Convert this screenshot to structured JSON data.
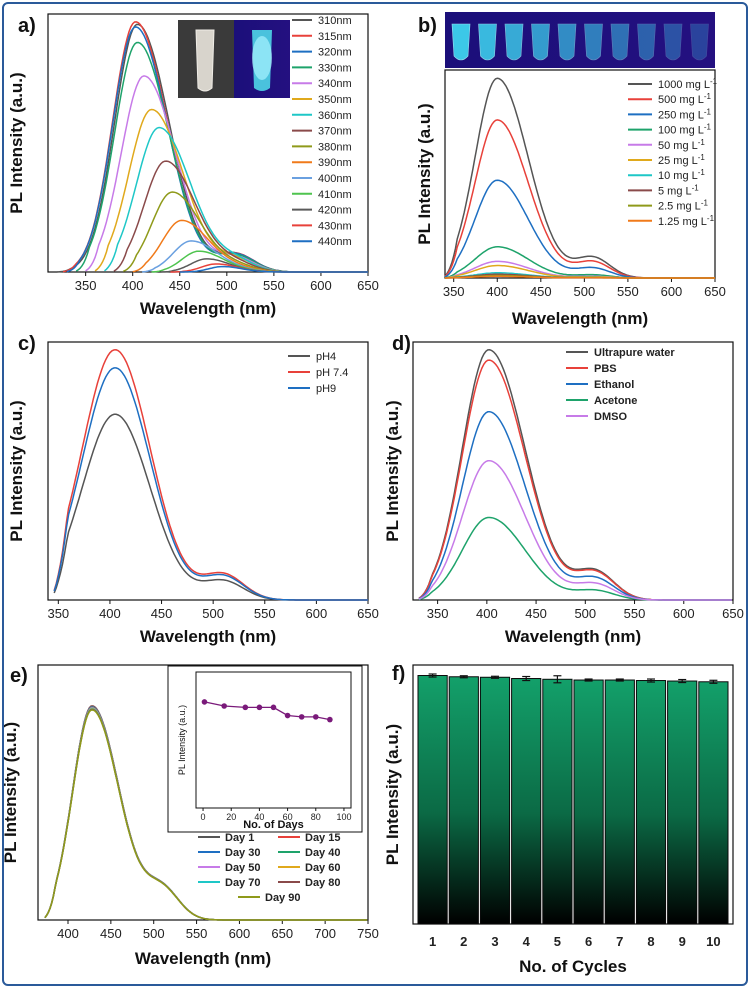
{
  "chart_data": [
    {
      "id": "a",
      "panel_label": "a)",
      "type": "line",
      "xlabel": "Wavelength (nm)",
      "ylabel": "PL Intensity (a.u.)",
      "xlim": [
        310,
        650
      ],
      "xticks": [
        350,
        400,
        450,
        500,
        550,
        600,
        650
      ],
      "ylim": [
        0,
        1.0
      ],
      "inset_image": "cuvette-photo-daylight-and-uv",
      "legend_title": "",
      "series": [
        {
          "name": "310nm",
          "color": "#555555",
          "start": 320,
          "peak": 405,
          "amp": 0.96,
          "w": 38
        },
        {
          "name": "315nm",
          "color": "#e8413a",
          "start": 325,
          "peak": 403,
          "amp": 0.97,
          "w": 38
        },
        {
          "name": "320nm",
          "color": "#1e6fc2",
          "start": 330,
          "peak": 403,
          "amp": 0.95,
          "w": 38
        },
        {
          "name": "330nm",
          "color": "#1ea36b",
          "start": 340,
          "peak": 405,
          "amp": 0.89,
          "w": 38
        },
        {
          "name": "340nm",
          "color": "#c77be8",
          "start": 350,
          "peak": 412,
          "amp": 0.76,
          "w": 38
        },
        {
          "name": "350nm",
          "color": "#e0a91c",
          "start": 360,
          "peak": 420,
          "amp": 0.63,
          "w": 38
        },
        {
          "name": "360nm",
          "color": "#1ec7c7",
          "start": 370,
          "peak": 428,
          "amp": 0.56,
          "w": 38
        },
        {
          "name": "370nm",
          "color": "#8a4a4a",
          "start": 380,
          "peak": 435,
          "amp": 0.43,
          "w": 36
        },
        {
          "name": "380nm",
          "color": "#8f9a1a",
          "start": 390,
          "peak": 442,
          "amp": 0.31,
          "w": 34
        },
        {
          "name": "390nm",
          "color": "#f07a1a",
          "start": 400,
          "peak": 452,
          "amp": 0.2,
          "w": 32
        },
        {
          "name": "400nm",
          "color": "#6aa0e0",
          "start": 410,
          "peak": 462,
          "amp": 0.12,
          "w": 30
        },
        {
          "name": "410nm",
          "color": "#4ec44e",
          "start": 420,
          "peak": 470,
          "amp": 0.08,
          "w": 28
        },
        {
          "name": "420nm",
          "color": "#5a5a5a",
          "start": 430,
          "peak": 478,
          "amp": 0.05,
          "w": 26
        },
        {
          "name": "430nm",
          "color": "#e8413a",
          "start": 440,
          "peak": 488,
          "amp": 0.03,
          "w": 24
        },
        {
          "name": "440nm",
          "color": "#1e6fc2",
          "start": 450,
          "peak": 495,
          "amp": 0.02,
          "w": 22
        }
      ]
    },
    {
      "id": "b",
      "panel_label": "b)",
      "type": "line",
      "xlabel": "Wavelength (nm)",
      "ylabel": "PL Intensity (a.u.)",
      "xlim": [
        340,
        650
      ],
      "xticks": [
        350,
        400,
        450,
        500,
        550,
        600,
        650
      ],
      "ylim": [
        0,
        1.0
      ],
      "inset_image": "vials-under-uv-light",
      "series": [
        {
          "name": "1000 mg L",
          "sup": "-1",
          "color": "#555555",
          "amp": 0.96
        },
        {
          "name": "500 mg L",
          "sup": "-1",
          "color": "#e8413a",
          "amp": 0.76
        },
        {
          "name": "250 mg L",
          "sup": "-1",
          "color": "#1e6fc2",
          "amp": 0.47
        },
        {
          "name": "100 mg L",
          "sup": "-1",
          "color": "#1ea36b",
          "amp": 0.15
        },
        {
          "name": "50 mg L",
          "sup": "-1",
          "color": "#c77be8",
          "amp": 0.08
        },
        {
          "name": "25 mg L",
          "sup": "-1",
          "color": "#e0a91c",
          "amp": 0.06
        },
        {
          "name": "10 mg L",
          "sup": "-1",
          "color": "#1ec7c7",
          "amp": 0.025
        },
        {
          "name": "5 mg L",
          "sup": "-1",
          "color": "#8a4a4a",
          "amp": 0.018
        },
        {
          "name": "2.5 mg L",
          "sup": "-1",
          "color": "#8f9a1a",
          "amp": 0.012
        },
        {
          "name": "1.25 mg L",
          "sup": "-1",
          "color": "#f07a1a",
          "amp": 0.008
        }
      ]
    },
    {
      "id": "c",
      "panel_label": "c)",
      "type": "line",
      "xlabel": "Wavelength (nm)",
      "ylabel": "PL Intensity (a.u.)",
      "xlim": [
        340,
        650
      ],
      "xticks": [
        350,
        400,
        450,
        500,
        550,
        600,
        650
      ],
      "ylim": [
        0,
        1.0
      ],
      "series": [
        {
          "name": "pH4",
          "color": "#555555",
          "amp": 0.72
        },
        {
          "name": "pH 7.4",
          "color": "#e8413a",
          "amp": 0.97
        },
        {
          "name": "pH9",
          "color": "#1e6fc2",
          "amp": 0.9
        }
      ]
    },
    {
      "id": "d",
      "panel_label": "d)",
      "type": "line",
      "xlabel": "Wavelength (nm)",
      "ylabel": "PL Intensity (a.u.)",
      "xlim": [
        325,
        650
      ],
      "xticks": [
        350,
        400,
        450,
        500,
        550,
        600,
        650
      ],
      "ylim": [
        0,
        1.0
      ],
      "series": [
        {
          "name": "Ultrapure water",
          "color": "#555555",
          "amp": 0.97
        },
        {
          "name": "PBS",
          "color": "#e8413a",
          "amp": 0.93
        },
        {
          "name": "Ethanol",
          "color": "#1e6fc2",
          "amp": 0.73
        },
        {
          "name": "Acetone",
          "color": "#1ea36b",
          "amp": 0.32
        },
        {
          "name": "DMSO",
          "color": "#c77be8",
          "amp": 0.54
        }
      ]
    },
    {
      "id": "e",
      "panel_label": "e)",
      "type": "line",
      "xlabel": "Wavelength (nm)",
      "ylabel": "PL Intensity (a.u.)",
      "xlim": [
        365,
        750
      ],
      "xticks": [
        400,
        450,
        500,
        550,
        600,
        650,
        700,
        750
      ],
      "ylim": [
        0,
        1.0
      ],
      "series": [
        {
          "name": "Day 1",
          "color": "#555555"
        },
        {
          "name": "Day 15",
          "color": "#e8413a"
        },
        {
          "name": "Day 30",
          "color": "#1e6fc2"
        },
        {
          "name": "Day 40",
          "color": "#1ea36b"
        },
        {
          "name": "Day 50",
          "color": "#c77be8"
        },
        {
          "name": "Day 60",
          "color": "#e0a91c"
        },
        {
          "name": "Day 70",
          "color": "#1ec7c7"
        },
        {
          "name": "Day 80",
          "color": "#8a4a4a"
        },
        {
          "name": "Day 90",
          "color": "#8f9a1a"
        }
      ],
      "inset": {
        "type": "line",
        "xlabel": "No. of Days",
        "ylabel": "PL Intensity (a.u.)",
        "xlim": [
          -5,
          105
        ],
        "xticks": [
          0,
          20,
          40,
          60,
          80,
          100
        ],
        "ylim": [
          0,
          1.0
        ],
        "color": "#7a1a7a",
        "x": [
          1,
          15,
          30,
          40,
          50,
          60,
          70,
          80,
          90
        ],
        "y": [
          0.78,
          0.75,
          0.74,
          0.74,
          0.74,
          0.68,
          0.67,
          0.67,
          0.65
        ]
      }
    },
    {
      "id": "f",
      "panel_label": "f)",
      "type": "bar",
      "xlabel": "No. of Cycles",
      "ylabel": "PL Intensity (a.u.)",
      "categories": [
        "1",
        "2",
        "3",
        "4",
        "5",
        "6",
        "7",
        "8",
        "9",
        "10"
      ],
      "values": [
        0.99,
        0.985,
        0.983,
        0.978,
        0.975,
        0.972,
        0.972,
        0.97,
        0.968,
        0.965
      ],
      "errors": [
        0.006,
        0.004,
        0.004,
        0.008,
        0.014,
        0.004,
        0.004,
        0.006,
        0.006,
        0.006
      ],
      "ylim": [
        0,
        1.0
      ],
      "bar_color_top": "#13a06a",
      "bar_color_bottom": "#000000"
    }
  ]
}
